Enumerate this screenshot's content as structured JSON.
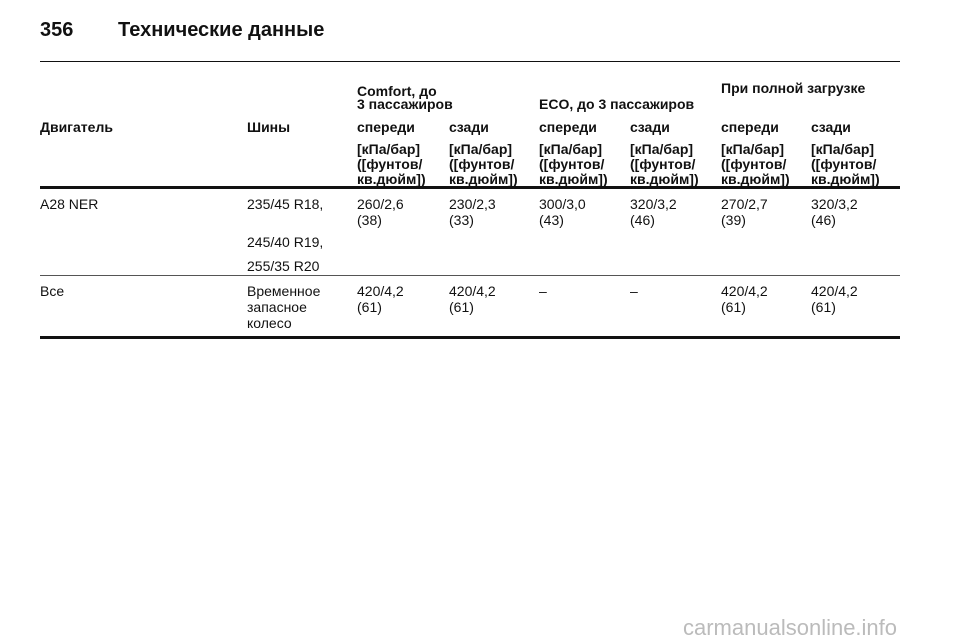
{
  "header": {
    "page_number": "356",
    "title": "Технические данные"
  },
  "table": {
    "group_headers": [
      {
        "lines": [
          "Comfort, до",
          "3 пассажиров"
        ]
      },
      {
        "lines": [
          "ECO, до 3 пассажиров"
        ]
      },
      {
        "lines": [
          "При полной загрузке"
        ]
      }
    ],
    "column_headers": [
      "Двигатель",
      "Шины",
      "спереди",
      "сзади",
      "спереди",
      "сзади",
      "спереди",
      "сзади"
    ],
    "unit_headers": [
      [
        "[кПа/бар]",
        "([фунтов/",
        "кв.дюйм])"
      ],
      [
        "[кПа/бар]",
        "([фунтов/",
        "кв.дюйм])"
      ],
      [
        "[кПа/бар]",
        "([фунтов/",
        "кв.дюйм])"
      ],
      [
        "[кПа/бар]",
        "([фунтов/",
        "кв.дюйм])"
      ],
      [
        "[кПа/бар]",
        "([фунтов/",
        "кв.дюйм])"
      ],
      [
        "[кПа/бар]",
        "([фунтов/",
        "кв.дюйм])"
      ]
    ],
    "rows": [
      {
        "engine": "A28 NER",
        "tires": [
          "235/45 R18,",
          "245/40 R19,",
          "255/35 R20"
        ],
        "values": [
          [
            "260/2,6",
            "(38)"
          ],
          [
            "230/2,3",
            "(33)"
          ],
          [
            "300/3,0",
            "(43)"
          ],
          [
            "320/3,2",
            "(46)"
          ],
          [
            "270/2,7",
            "(39)"
          ],
          [
            "320/3,2",
            "(46)"
          ]
        ]
      },
      {
        "engine": "Все",
        "tires": [
          "Временное",
          "запасное",
          "колесо"
        ],
        "values": [
          [
            "420/4,2",
            "(61)"
          ],
          [
            "420/4,2",
            "(61)"
          ],
          [
            "–"
          ],
          [
            "–"
          ],
          [
            "420/4,2",
            "(61)"
          ],
          [
            "420/4,2",
            "(61)"
          ]
        ]
      }
    ]
  },
  "watermark": "carmanualsonline.info"
}
